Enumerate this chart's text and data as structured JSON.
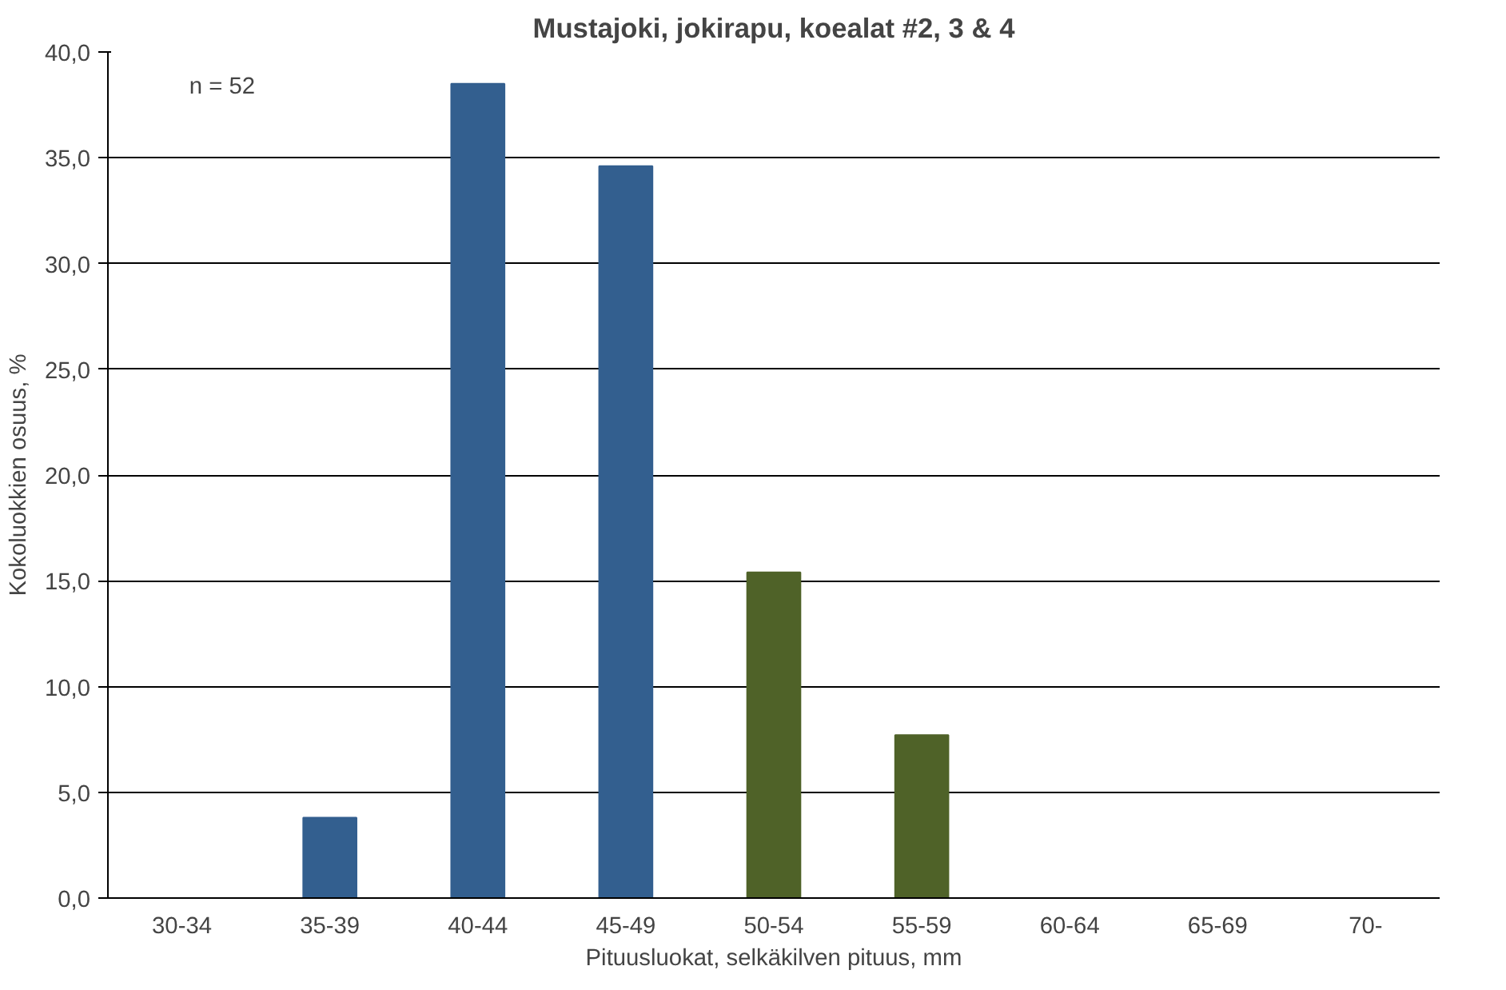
{
  "chart_data": {
    "type": "bar",
    "title": "Mustajoki, jokirapu, koealat #2, 3 & 4",
    "xlabel": "Pituusluokat, selkäkilven pituus, mm",
    "ylabel": "Kokoluokkien osuus, %",
    "categories": [
      "30-34",
      "35-39",
      "40-44",
      "45-49",
      "50-54",
      "55-59",
      "60-64",
      "65-69",
      "70-"
    ],
    "values": [
      0,
      3.8,
      38.5,
      34.6,
      15.4,
      7.7,
      0,
      0,
      0
    ],
    "colors": [
      "#335f8f",
      "#335f8f",
      "#335f8f",
      "#335f8f",
      "#4f6228",
      "#4f6228",
      "#4f6228",
      "#4f6228",
      "#4f6228"
    ],
    "ylim": [
      0,
      40
    ],
    "yticks": [
      {
        "value": 0,
        "label": "0,0"
      },
      {
        "value": 5,
        "label": "5,0"
      },
      {
        "value": 10,
        "label": "10,0"
      },
      {
        "value": 15,
        "label": "15,0"
      },
      {
        "value": 20,
        "label": "20,0"
      },
      {
        "value": 25,
        "label": "25,0"
      },
      {
        "value": 30,
        "label": "30,0"
      },
      {
        "value": 35,
        "label": "35,0"
      },
      {
        "value": 40,
        "label": "40,0"
      }
    ],
    "grid": "y",
    "annotations": [
      "n = 52"
    ]
  }
}
